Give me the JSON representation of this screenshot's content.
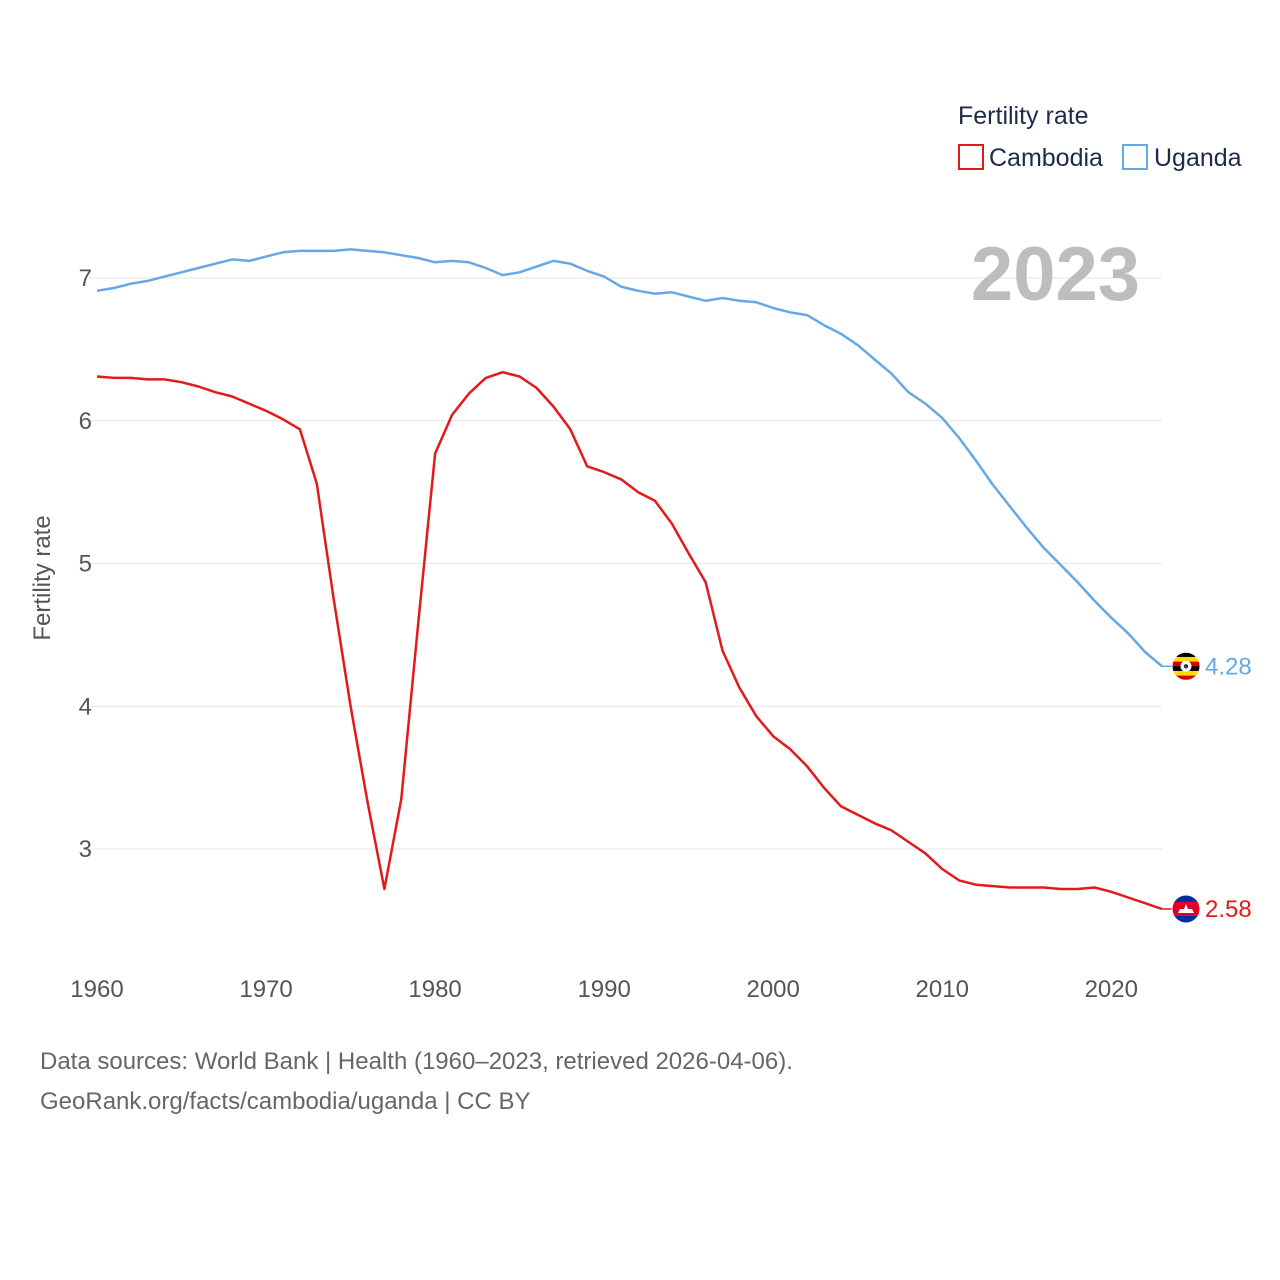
{
  "chart_data": {
    "type": "line",
    "title": "",
    "xlabel": "",
    "ylabel": "Fertility rate",
    "xlim": [
      1960,
      2023
    ],
    "ylim": [
      2.3,
      7.3
    ],
    "xticks": [
      1960,
      1970,
      1980,
      1990,
      2000,
      2010,
      2020
    ],
    "yticks": [
      3,
      4,
      5,
      6,
      7
    ],
    "grid": true,
    "legend": {
      "title": "Fertility rate",
      "position": "top-right"
    },
    "year_label": "2023",
    "x": [
      1960,
      1961,
      1962,
      1963,
      1964,
      1965,
      1966,
      1967,
      1968,
      1969,
      1970,
      1971,
      1972,
      1973,
      1974,
      1975,
      1976,
      1977,
      1978,
      1979,
      1980,
      1981,
      1982,
      1983,
      1984,
      1985,
      1986,
      1987,
      1988,
      1989,
      1990,
      1991,
      1992,
      1993,
      1994,
      1995,
      1996,
      1997,
      1998,
      1999,
      2000,
      2001,
      2002,
      2003,
      2004,
      2005,
      2006,
      2007,
      2008,
      2009,
      2010,
      2011,
      2012,
      2013,
      2014,
      2015,
      2016,
      2017,
      2018,
      2019,
      2020,
      2021,
      2022,
      2023
    ],
    "series": [
      {
        "name": "Cambodia",
        "color": "#e31a1c",
        "end_label": "2.58",
        "values": [
          6.31,
          6.3,
          6.3,
          6.29,
          6.29,
          6.27,
          6.24,
          6.2,
          6.17,
          6.12,
          6.07,
          6.01,
          5.94,
          5.56,
          4.75,
          4.0,
          3.33,
          2.72,
          3.35,
          4.58,
          5.77,
          6.04,
          6.19,
          6.3,
          6.34,
          6.31,
          6.23,
          6.1,
          5.94,
          5.68,
          5.64,
          5.59,
          5.5,
          5.44,
          5.28,
          5.07,
          4.87,
          4.39,
          4.13,
          3.93,
          3.79,
          3.7,
          3.58,
          3.43,
          3.3,
          3.24,
          3.18,
          3.13,
          3.05,
          2.97,
          2.86,
          2.78,
          2.75,
          2.74,
          2.73,
          2.73,
          2.73,
          2.72,
          2.72,
          2.73,
          2.7,
          2.66,
          2.62,
          2.58
        ]
      },
      {
        "name": "Uganda",
        "color": "#64a8e8",
        "end_label": "4.28",
        "values": [
          6.91,
          6.93,
          6.96,
          6.98,
          7.01,
          7.04,
          7.07,
          7.1,
          7.13,
          7.12,
          7.15,
          7.18,
          7.19,
          7.19,
          7.19,
          7.2,
          7.19,
          7.18,
          7.16,
          7.14,
          7.11,
          7.12,
          7.11,
          7.07,
          7.02,
          7.04,
          7.08,
          7.12,
          7.1,
          7.05,
          7.01,
          6.94,
          6.91,
          6.89,
          6.9,
          6.87,
          6.84,
          6.86,
          6.84,
          6.83,
          6.79,
          6.76,
          6.74,
          6.67,
          6.61,
          6.53,
          6.43,
          6.33,
          6.2,
          6.12,
          6.02,
          5.88,
          5.72,
          5.55,
          5.4,
          5.25,
          5.11,
          4.99,
          4.87,
          4.74,
          4.62,
          4.51,
          4.38,
          4.28
        ]
      }
    ]
  },
  "footer": {
    "line1": "Data sources: World Bank | Health (1960–2023, retrieved 2026-04-06).",
    "line2": "GeoRank.org/facts/cambodia/uganda | CC BY"
  }
}
